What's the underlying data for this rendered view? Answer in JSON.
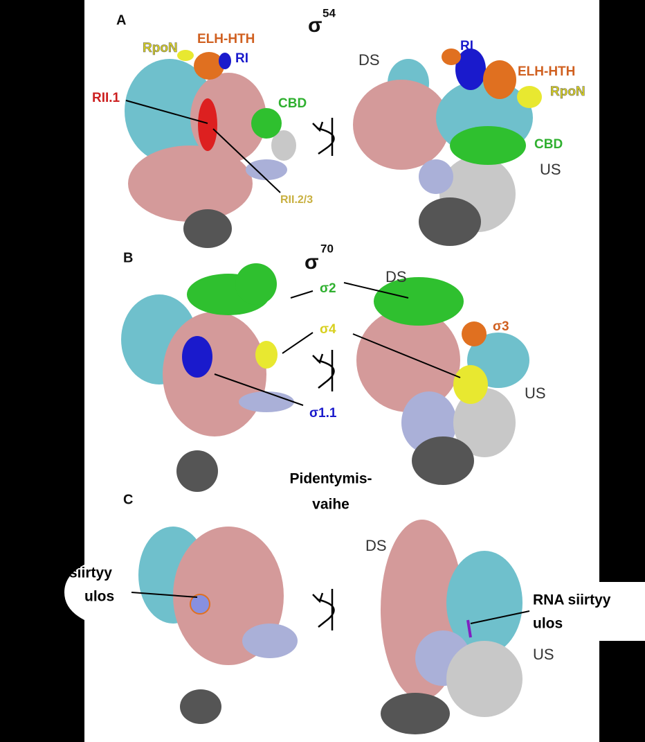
{
  "panels": [
    {
      "letter": "A",
      "sigma": "σ",
      "sigma_number": "54",
      "left_labels": [
        "RpoN",
        "ELH-HTH",
        "RI",
        "RII.1",
        "CBD",
        "RII.2/3"
      ],
      "right_labels": [
        "DS",
        "RI",
        "ELH-HTH",
        "RpoN",
        "CBD",
        "US"
      ]
    },
    {
      "letter": "B",
      "sigma": "σ",
      "sigma_number": "70",
      "center_labels": [
        "σ2",
        "σ4",
        "σ1.1"
      ],
      "right_labels": [
        "DS",
        "σ3",
        "US"
      ]
    },
    {
      "letter": "C",
      "right_labels": [
        "DS",
        "US"
      ]
    }
  ],
  "phase_label": [
    "Pidentymis-",
    "vaihe"
  ],
  "left_note": [
    "siirtyy",
    "ulos"
  ],
  "right_note": [
    "RNA siirtyy",
    "ulos"
  ]
}
